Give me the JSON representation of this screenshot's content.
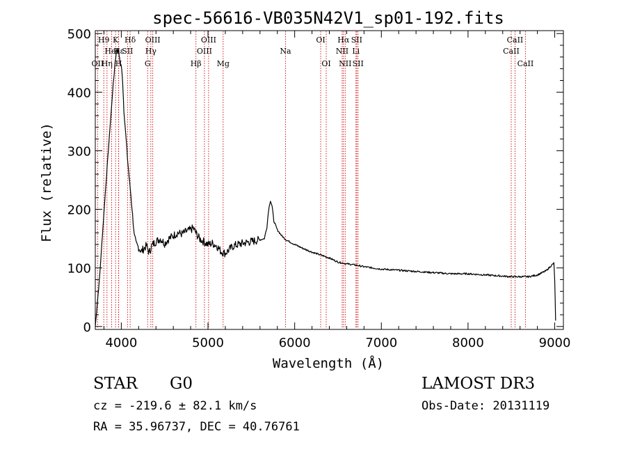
{
  "chart_data": {
    "type": "line",
    "title": "spec-56616-VB035N42V1_sp01-192.fits",
    "xlabel": "Wavelength (Å)",
    "ylabel": "Flux (relative)",
    "xlim": [
      3700,
      9100
    ],
    "ylim": [
      -5,
      505
    ],
    "xticks": [
      4000,
      5000,
      6000,
      7000,
      8000,
      9000
    ],
    "yticks": [
      0,
      100,
      200,
      300,
      400,
      500
    ],
    "line_color": "#000000",
    "marker_color": "#cc0000",
    "series": [
      {
        "name": "flux",
        "x": [
          3700,
          3750,
          3800,
          3850,
          3900,
          3930,
          3950,
          3970,
          3985,
          4000,
          4015,
          4030,
          4050,
          4070,
          4090,
          4110,
          4130,
          4150,
          4170,
          4200,
          4230,
          4260,
          4290,
          4320,
          4360,
          4400,
          4450,
          4500,
          4550,
          4600,
          4650,
          4700,
          4750,
          4800,
          4830,
          4860,
          4900,
          4950,
          5000,
          5050,
          5100,
          5150,
          5200,
          5250,
          5300,
          5400,
          5500,
          5600,
          5650,
          5680,
          5700,
          5720,
          5740,
          5760,
          5800,
          5850,
          5900,
          6000,
          6100,
          6200,
          6300,
          6400,
          6500,
          6600,
          6700,
          6800,
          6900,
          7000,
          7200,
          7400,
          7600,
          7800,
          8000,
          8200,
          8400,
          8500,
          8600,
          8700,
          8800,
          8900,
          8960,
          8990,
          9000,
          9010
        ],
        "y": [
          0,
          85,
          195,
          300,
          400,
          455,
          475,
          470,
          450,
          445,
          420,
          370,
          330,
          290,
          255,
          225,
          190,
          155,
          140,
          135,
          128,
          133,
          138,
          126,
          140,
          145,
          150,
          142,
          150,
          155,
          160,
          158,
          162,
          165,
          168,
          160,
          150,
          145,
          140,
          142,
          138,
          128,
          125,
          132,
          138,
          142,
          145,
          148,
          150,
          170,
          200,
          215,
          205,
          180,
          165,
          155,
          148,
          140,
          133,
          127,
          122,
          117,
          110,
          107,
          105,
          102,
          100,
          98,
          96,
          94,
          92,
          90,
          90,
          88,
          86,
          85,
          85,
          85,
          88,
          95,
          104,
          108,
          80,
          10
        ]
      }
    ],
    "line_markers": [
      {
        "wavelength": 3727,
        "label": "OII",
        "row": 3
      },
      {
        "wavelength": 3798,
        "label": "H9",
        "row": 1
      },
      {
        "wavelength": 3835,
        "label": "Hη",
        "row": 3
      },
      {
        "wavelength": 3889,
        "label": "HeI",
        "row": 2
      },
      {
        "wavelength": 3934,
        "label": "K",
        "row": 1
      },
      {
        "wavelength": 3969,
        "label": "H",
        "row": 3
      },
      {
        "wavelength": 3970,
        "label": "Hε",
        "row": 2
      },
      {
        "wavelength": 4072,
        "label": "SII",
        "row": 2
      },
      {
        "wavelength": 4102,
        "label": "Hδ",
        "row": 1
      },
      {
        "wavelength": 4304,
        "label": "G",
        "row": 3
      },
      {
        "wavelength": 4341,
        "label": "Hγ",
        "row": 2
      },
      {
        "wavelength": 4363,
        "label": "OIII",
        "row": 1
      },
      {
        "wavelength": 4861,
        "label": "Hβ",
        "row": 3
      },
      {
        "wavelength": 4959,
        "label": "OIII",
        "row": 2
      },
      {
        "wavelength": 5007,
        "label": "OIII",
        "row": 1
      },
      {
        "wavelength": 5175,
        "label": "Mg",
        "row": 3
      },
      {
        "wavelength": 5894,
        "label": "Na",
        "row": 2
      },
      {
        "wavelength": 6300,
        "label": "OI",
        "row": 1
      },
      {
        "wavelength": 6364,
        "label": "OI",
        "row": 3
      },
      {
        "wavelength": 6548,
        "label": "NII",
        "row": 2
      },
      {
        "wavelength": 6563,
        "label": "Hα",
        "row": 1
      },
      {
        "wavelength": 6583,
        "label": "NII",
        "row": 3
      },
      {
        "wavelength": 6707,
        "label": "Li",
        "row": 2
      },
      {
        "wavelength": 6716,
        "label": "SII",
        "row": 1
      },
      {
        "wavelength": 6731,
        "label": "SII",
        "row": 3
      },
      {
        "wavelength": 8498,
        "label": "CaII",
        "row": 2
      },
      {
        "wavelength": 8542,
        "label": "CaII",
        "row": 1
      },
      {
        "wavelength": 8662,
        "label": "CaII",
        "row": 3
      }
    ]
  },
  "info": {
    "object_class": "STAR",
    "subclass": "G0",
    "redshift": "cz = -219.6 ± 82.1 km/s",
    "coords": "RA =  35.96737, DEC =  40.76761",
    "survey": "LAMOST DR3",
    "obs_date": "Obs-Date: 20131119"
  }
}
